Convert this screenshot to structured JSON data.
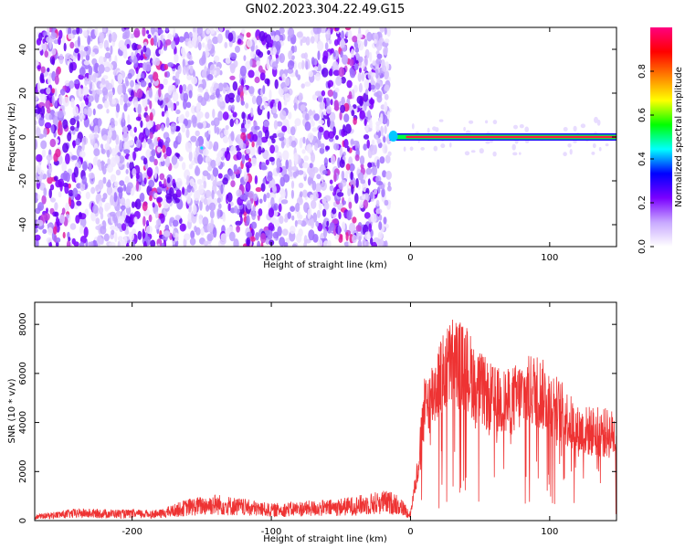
{
  "figure": {
    "title": "GN02.2023.304.22.49.G15"
  },
  "chart_data": [
    {
      "type": "heatmap",
      "xlabel": "Height of straight line (km)",
      "ylabel": "Frequency (Hz)",
      "xlim": [
        -270,
        148
      ],
      "ylim": [
        -50,
        50
      ],
      "xticks": [
        -200,
        -100,
        0,
        100
      ],
      "yticks": [
        -40,
        -20,
        0,
        20,
        40
      ],
      "grid": false,
      "colorbar": {
        "label": "Normalized spectral amplitude",
        "range": [
          0,
          1
        ],
        "ticks": [
          "0.0",
          "0.2",
          "0.4",
          "0.6",
          "0.8"
        ],
        "colors": [
          "#ffffff",
          "#c8a8ff",
          "#7a00ff",
          "#0000ff",
          "#00ffff",
          "#00ff00",
          "#ffff00",
          "#ff8000",
          "#ff0000",
          "#ff0080"
        ]
      },
      "description_values": {
        "noise_region_x": [
          -270,
          -15
        ],
        "noise_amplitude": 0.15,
        "signal_line_x": [
          -15,
          148
        ],
        "signal_line_frequency": 0,
        "signal_line_amplitude": 0.85
      }
    },
    {
      "type": "line",
      "xlabel": "Height of straight line (km)",
      "ylabel": "SNR (10 * v/v)",
      "xlim": [
        -270,
        148
      ],
      "ylim": [
        0,
        8900
      ],
      "xticks": [
        -200,
        -100,
        0,
        100
      ],
      "yticks": [
        0,
        2000,
        4000,
        6000,
        8000
      ],
      "grid": false,
      "series": [
        {
          "color": "#ee3333",
          "envelope": {
            "x": [
              -270,
              -240,
              -200,
              -180,
              -160,
              -140,
              -120,
              -100,
              -80,
              -60,
              -40,
              -20,
              -10,
              -5,
              0,
              5,
              10,
              20,
              30,
              40,
              50,
              60,
              70,
              80,
              90,
              100,
              110,
              120,
              130,
              140,
              148
            ],
            "y": [
              250,
              500,
              450,
              450,
              900,
              1100,
              900,
              700,
              800,
              850,
              1000,
              1250,
              1150,
              800,
              400,
              2600,
              5800,
              7300,
              8400,
              8000,
              6900,
              6300,
              6200,
              6600,
              6900,
              6300,
              5600,
              4700,
              4700,
              4600,
              4500
            ]
          }
        }
      ]
    }
  ]
}
